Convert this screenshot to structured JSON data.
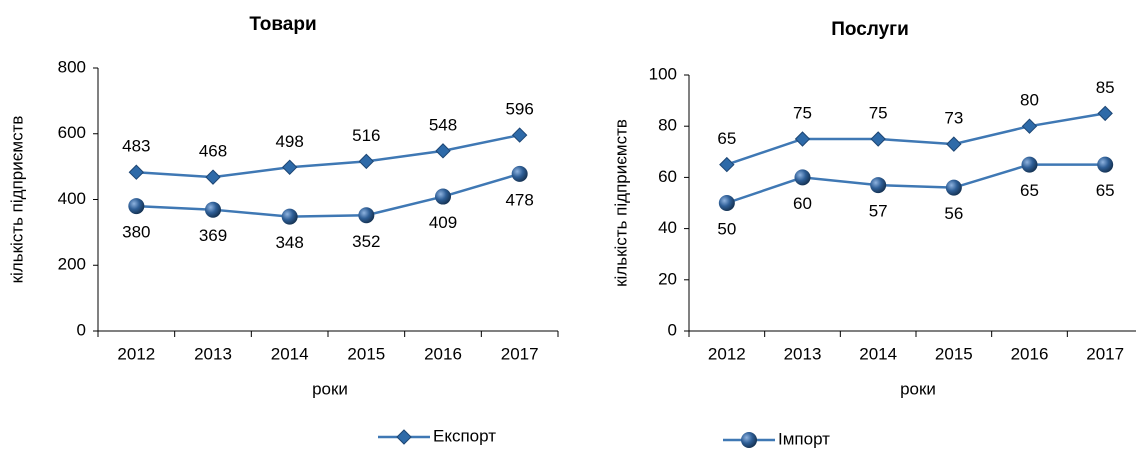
{
  "chart_data": [
    {
      "type": "line",
      "title": "Товари",
      "y_label": "кількість підприємств",
      "x_label": "роки",
      "categories": [
        "2012",
        "2013",
        "2014",
        "2015",
        "2016",
        "2017"
      ],
      "ylim": [
        0,
        800
      ],
      "yticks": [
        0,
        200,
        400,
        600,
        800
      ],
      "series": [
        {
          "name": "Експорт",
          "color": "#3f78b4",
          "marker": "diamond",
          "values": [
            483,
            468,
            498,
            516,
            548,
            596
          ]
        },
        {
          "name": "Імпорт",
          "color": "#3f78b4",
          "marker": "circle",
          "values": [
            380,
            369,
            348,
            352,
            409,
            478
          ]
        }
      ]
    },
    {
      "type": "line",
      "title": "Послуги",
      "y_label": "кількість підприємств",
      "x_label": "роки",
      "categories": [
        "2012",
        "2013",
        "2014",
        "2015",
        "2016",
        "2017"
      ],
      "ylim": [
        0,
        100
      ],
      "yticks": [
        0,
        20,
        40,
        60,
        80,
        100
      ],
      "series": [
        {
          "color": "#3f78b4",
          "marker": "diamond",
          "values": [
            65,
            75,
            75,
            73,
            80,
            85
          ]
        },
        {
          "color": "#3f78b4",
          "marker": "circle",
          "values": [
            50,
            60,
            57,
            56,
            65,
            65
          ]
        }
      ]
    }
  ]
}
